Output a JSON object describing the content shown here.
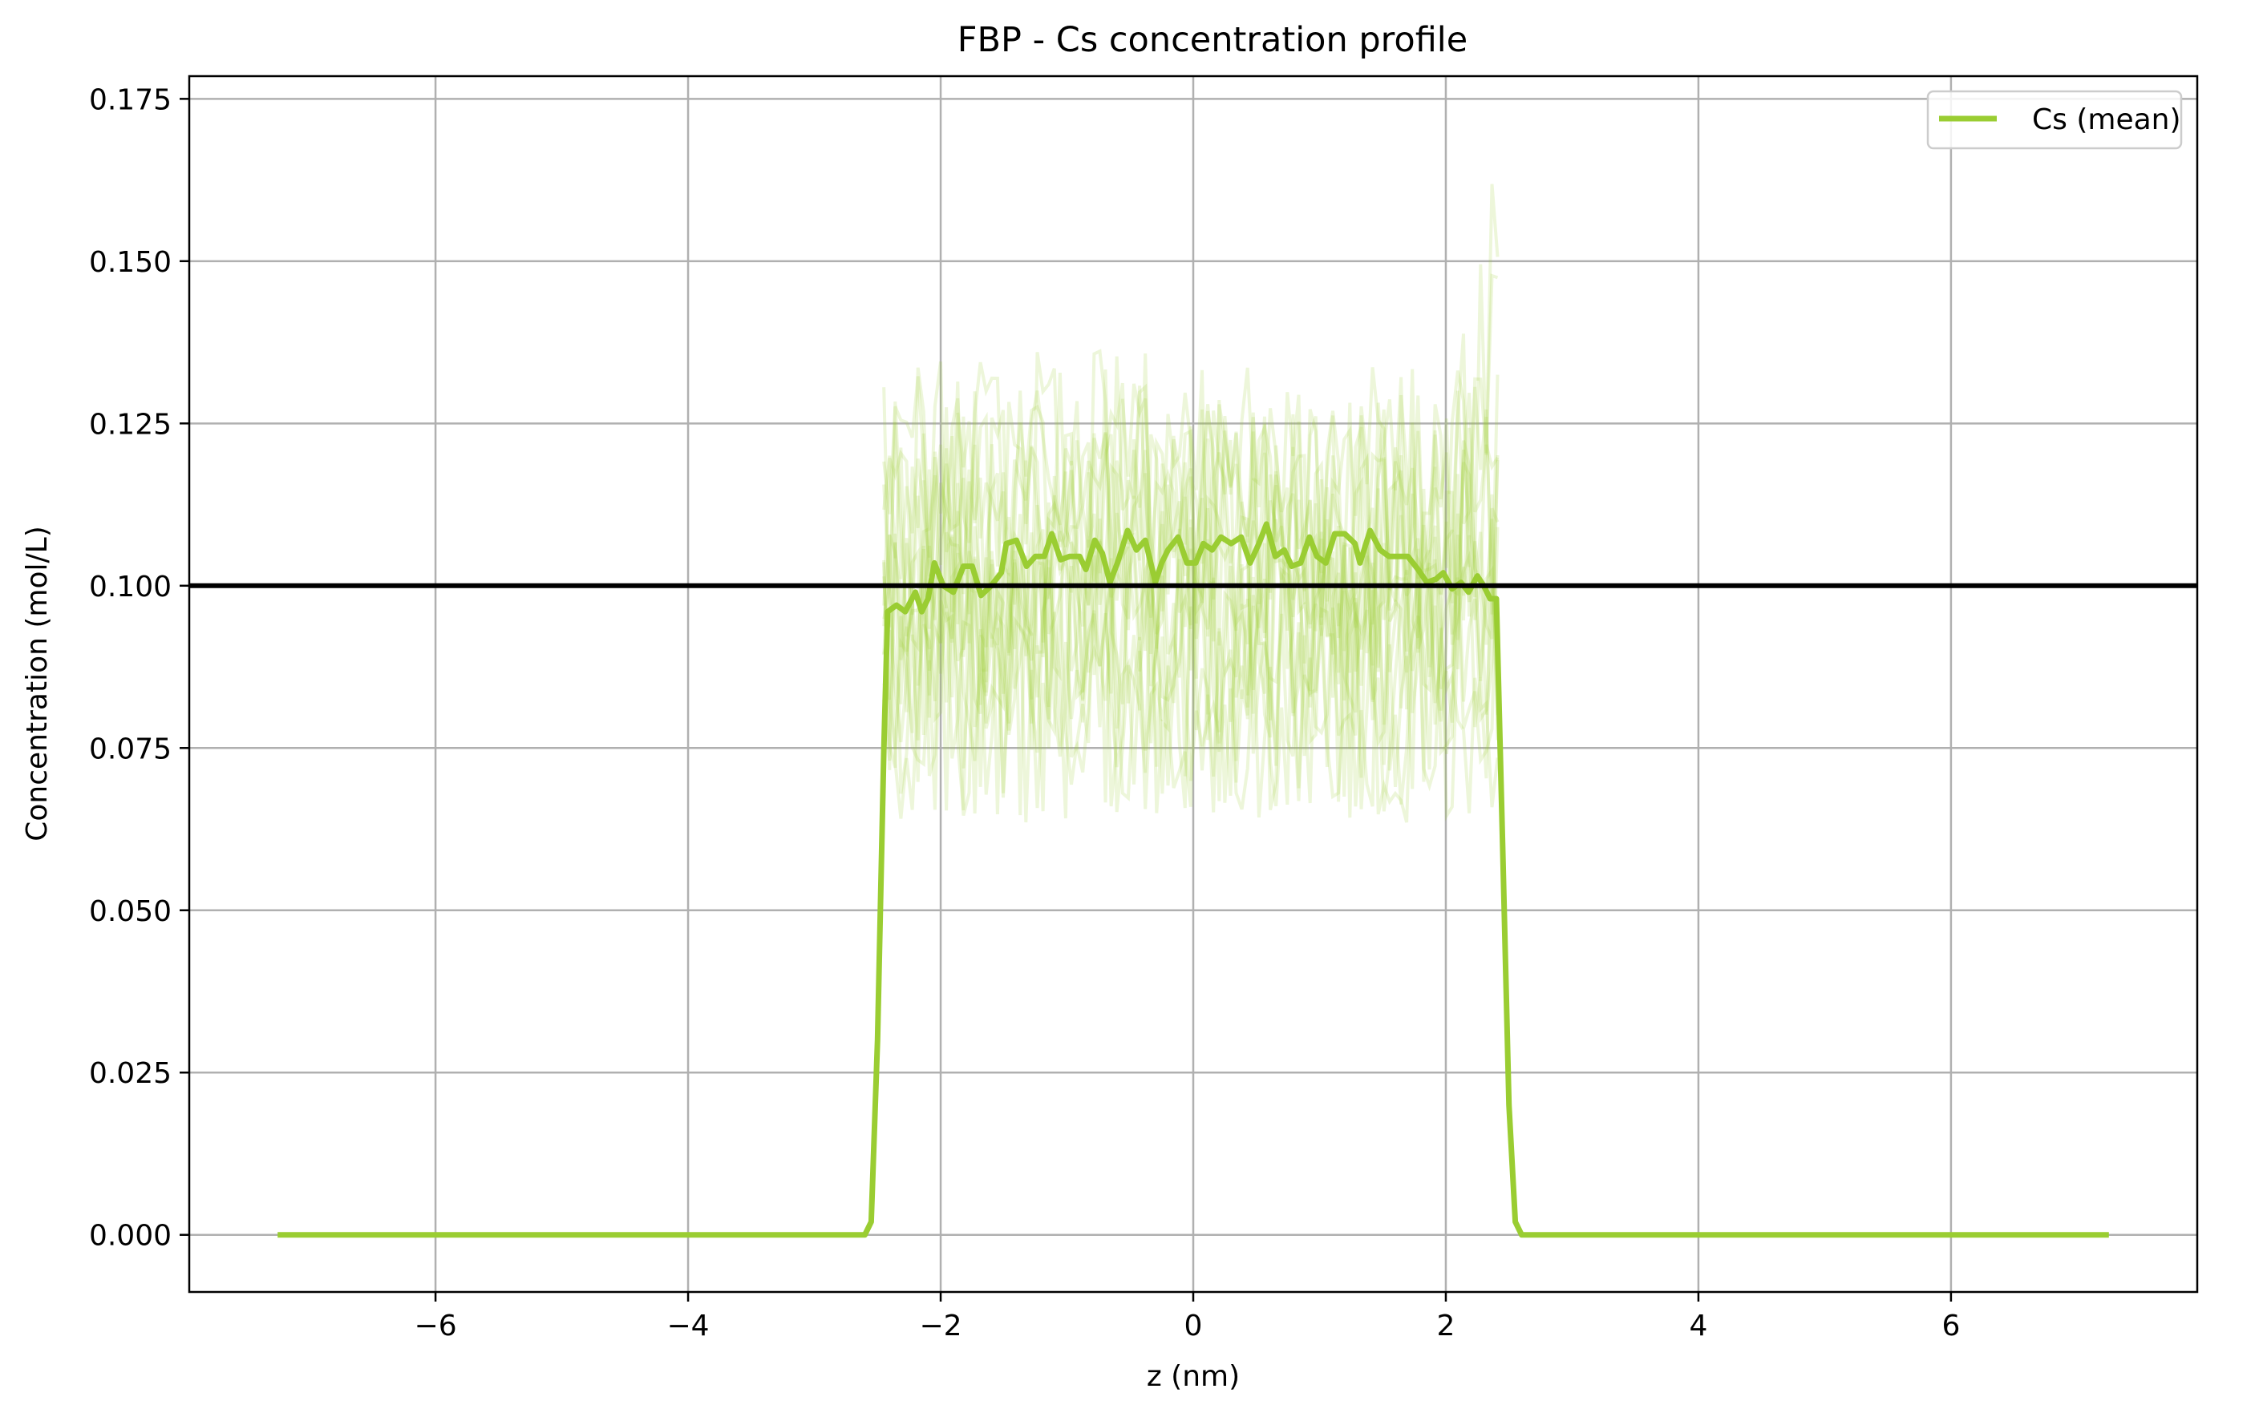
{
  "chart_data": {
    "type": "line",
    "title": "FBP - Cs concentration profile",
    "xlabel": "z (nm)",
    "ylabel": "Concentration (mol/L)",
    "xlim": [
      -7.95,
      7.95
    ],
    "ylim": [
      -0.0088,
      0.1785
    ],
    "xticks": [
      -6,
      -4,
      -2,
      0,
      2,
      4,
      6
    ],
    "xtick_labels": [
      "−6",
      "−4",
      "−2",
      "0",
      "2",
      "4",
      "6"
    ],
    "yticks": [
      0.0,
      0.025,
      0.05,
      0.075,
      0.1,
      0.125,
      0.15,
      0.175
    ],
    "ytick_labels": [
      "0.000",
      "0.025",
      "0.050",
      "0.075",
      "0.100",
      "0.125",
      "0.150",
      "0.175"
    ],
    "grid": true,
    "legend_position": "top-right",
    "reference_line": {
      "y": 0.1,
      "color": "#000000"
    },
    "series": [
      {
        "name": "Cs (mean)",
        "color": "#9acd32",
        "points": [
          [
            -7.25,
            0.0
          ],
          [
            -2.6,
            0.0
          ],
          [
            -2.55,
            0.002
          ],
          [
            -2.5,
            0.03
          ],
          [
            -2.45,
            0.075
          ],
          [
            -2.42,
            0.096
          ],
          [
            -2.35,
            0.097
          ],
          [
            -2.28,
            0.096
          ],
          [
            -2.2,
            0.099
          ],
          [
            -2.15,
            0.096
          ],
          [
            -2.1,
            0.098
          ],
          [
            -2.05,
            0.1035
          ],
          [
            -1.98,
            0.1
          ],
          [
            -1.9,
            0.099
          ],
          [
            -1.82,
            0.103
          ],
          [
            -1.75,
            0.103
          ],
          [
            -1.68,
            0.0985
          ],
          [
            -1.6,
            0.1
          ],
          [
            -1.52,
            0.102
          ],
          [
            -1.48,
            0.1065
          ],
          [
            -1.4,
            0.107
          ],
          [
            -1.32,
            0.103
          ],
          [
            -1.25,
            0.1045
          ],
          [
            -1.18,
            0.1045
          ],
          [
            -1.12,
            0.108
          ],
          [
            -1.05,
            0.104
          ],
          [
            -0.98,
            0.1045
          ],
          [
            -0.9,
            0.1045
          ],
          [
            -0.85,
            0.1025
          ],
          [
            -0.78,
            0.107
          ],
          [
            -0.72,
            0.105
          ],
          [
            -0.66,
            0.1005
          ],
          [
            -0.6,
            0.1035
          ],
          [
            -0.52,
            0.1085
          ],
          [
            -0.45,
            0.1055
          ],
          [
            -0.38,
            0.107
          ],
          [
            -0.3,
            0.1005
          ],
          [
            -0.25,
            0.1035
          ],
          [
            -0.2,
            0.1055
          ],
          [
            -0.12,
            0.1075
          ],
          [
            -0.05,
            0.1035
          ],
          [
            0.02,
            0.1035
          ],
          [
            0.08,
            0.1065
          ],
          [
            0.15,
            0.1055
          ],
          [
            0.22,
            0.1075
          ],
          [
            0.3,
            0.1065
          ],
          [
            0.38,
            0.1075
          ],
          [
            0.45,
            0.1035
          ],
          [
            0.52,
            0.1065
          ],
          [
            0.58,
            0.1095
          ],
          [
            0.65,
            0.1045
          ],
          [
            0.72,
            0.1055
          ],
          [
            0.78,
            0.103
          ],
          [
            0.85,
            0.1035
          ],
          [
            0.92,
            0.1075
          ],
          [
            0.98,
            0.1045
          ],
          [
            1.05,
            0.1035
          ],
          [
            1.12,
            0.108
          ],
          [
            1.2,
            0.108
          ],
          [
            1.28,
            0.1065
          ],
          [
            1.32,
            0.1035
          ],
          [
            1.4,
            0.1085
          ],
          [
            1.48,
            0.1055
          ],
          [
            1.55,
            0.1045
          ],
          [
            1.62,
            0.1045
          ],
          [
            1.7,
            0.1045
          ],
          [
            1.78,
            0.1025
          ],
          [
            1.85,
            0.1005
          ],
          [
            1.92,
            0.101
          ],
          [
            1.98,
            0.102
          ],
          [
            2.05,
            0.0995
          ],
          [
            2.12,
            0.1005
          ],
          [
            2.18,
            0.099
          ],
          [
            2.25,
            0.1015
          ],
          [
            2.3,
            0.1
          ],
          [
            2.35,
            0.098
          ],
          [
            2.4,
            0.098
          ],
          [
            2.45,
            0.06
          ],
          [
            2.5,
            0.02
          ],
          [
            2.55,
            0.002
          ],
          [
            2.6,
            0.0
          ],
          [
            7.25,
            0.0
          ]
        ]
      }
    ]
  },
  "legend": {
    "label": "Cs (mean)"
  }
}
